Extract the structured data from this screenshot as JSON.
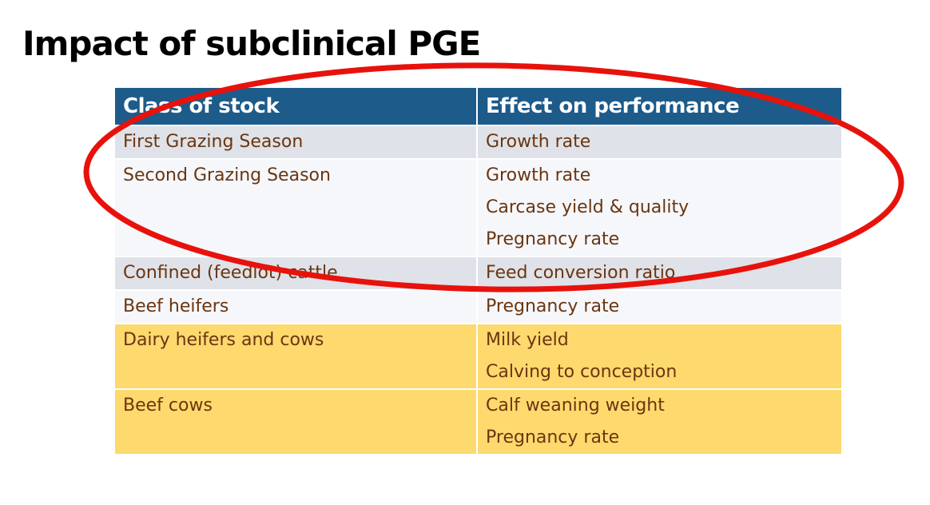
{
  "slide": {
    "title": "Impact of subclinical PGE"
  },
  "table": {
    "headers": [
      "Class of stock",
      "Effect on performance"
    ],
    "rows": [
      {
        "stock": "First Grazing Season",
        "effects": [
          "Growth rate"
        ],
        "shade": "grey"
      },
      {
        "stock": "Second Grazing Season",
        "effects": [
          "Growth rate",
          "Carcase yield & quality",
          "Pregnancy rate"
        ],
        "shade": "light"
      },
      {
        "stock": "Confined (feedlot) cattle",
        "effects": [
          "Feed conversion ratio"
        ],
        "shade": "grey"
      },
      {
        "stock": "Beef heifers",
        "effects": [
          "Pregnancy rate"
        ],
        "shade": "light"
      },
      {
        "stock": "Dairy heifers and cows",
        "effects": [
          "Milk yield",
          "Calving to conception"
        ],
        "shade": "yellow"
      },
      {
        "stock": "Beef cows",
        "effects": [
          "Calf weaning weight",
          "Pregnancy rate"
        ],
        "shade": "yellow"
      }
    ]
  },
  "colors": {
    "header_bg": "#1d5b8a",
    "body_text": "#6b3510",
    "highlight_row": "#fdd96e",
    "annotation_circle": "#e8120c"
  }
}
